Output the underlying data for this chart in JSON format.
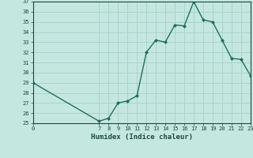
{
  "x": [
    0,
    7,
    8,
    9,
    10,
    11,
    12,
    13,
    14,
    15,
    16,
    17,
    18,
    19,
    20,
    21,
    22,
    23
  ],
  "y": [
    29,
    25.2,
    25.5,
    27,
    27.2,
    27.7,
    32,
    33.2,
    33,
    34.7,
    34.6,
    37,
    35.2,
    35,
    33.2,
    31.4,
    31.3,
    29.7
  ],
  "xlabel": "Humidex (Indice chaleur)",
  "ylim": [
    25,
    37
  ],
  "xlim": [
    0,
    23
  ],
  "yticks": [
    25,
    26,
    27,
    28,
    29,
    30,
    31,
    32,
    33,
    34,
    35,
    36,
    37
  ],
  "xticks": [
    0,
    7,
    8,
    9,
    10,
    11,
    12,
    13,
    14,
    15,
    16,
    17,
    18,
    19,
    20,
    21,
    22,
    23
  ],
  "line_color": "#1f6f5e",
  "bg_color": "#c4e8e0",
  "grid_color": "#aad4cc",
  "text_color": "#1a4a3a",
  "marker": "D",
  "markersize": 2.0,
  "linewidth": 1.0
}
